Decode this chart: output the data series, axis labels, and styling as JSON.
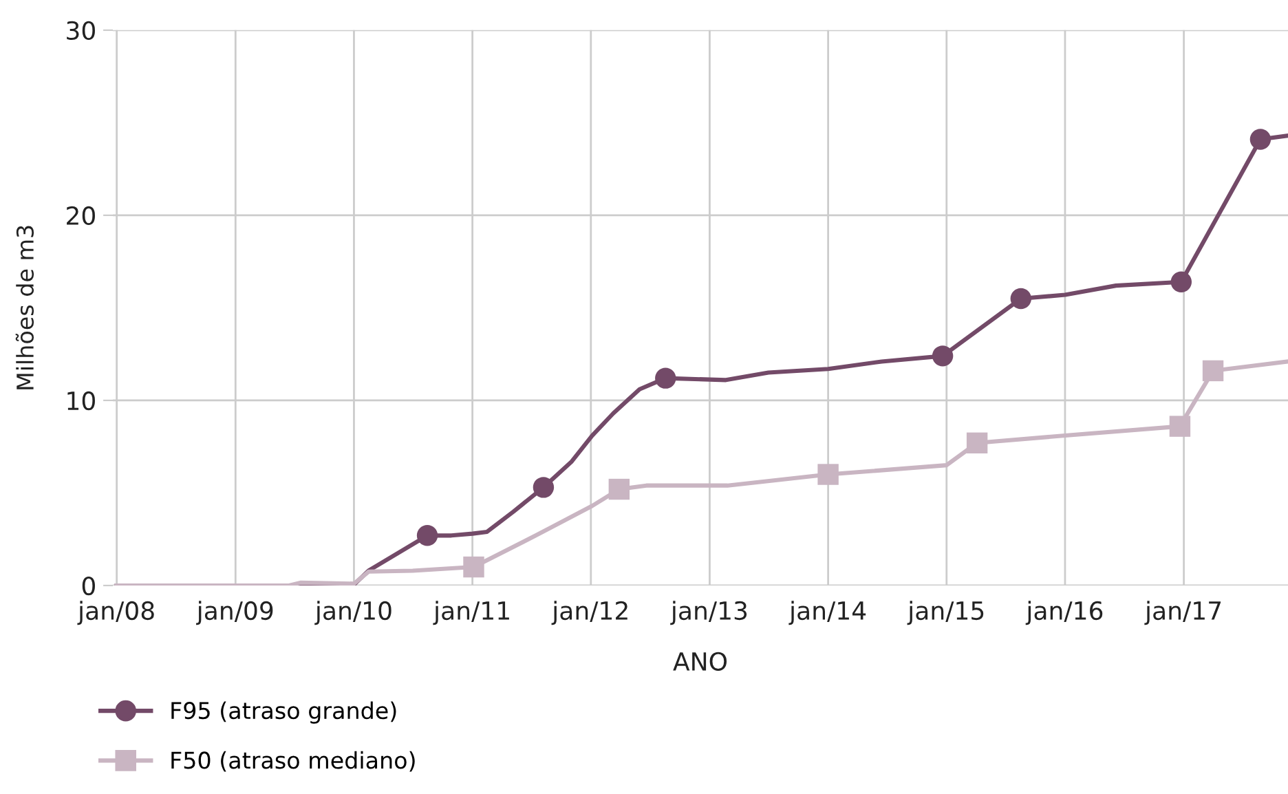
{
  "chart_data": {
    "type": "line",
    "xlabel": "ANO",
    "ylabel": "Milhões de m3",
    "xlim": [
      "2007-12-20",
      "2017-11-18"
    ],
    "ylim": [
      0,
      30
    ],
    "yticks": [
      0,
      10,
      20,
      30
    ],
    "xticks": [
      {
        "value": "2008-01-01",
        "label": "jan/08"
      },
      {
        "value": "2009-01-01",
        "label": "jan/09"
      },
      {
        "value": "2010-01-01",
        "label": "jan/10"
      },
      {
        "value": "2011-01-01",
        "label": "jan/11"
      },
      {
        "value": "2012-01-01",
        "label": "jan/12"
      },
      {
        "value": "2013-01-01",
        "label": "jan/13"
      },
      {
        "value": "2014-01-01",
        "label": "jan/14"
      },
      {
        "value": "2015-01-01",
        "label": "jan/15"
      },
      {
        "value": "2016-01-01",
        "label": "jan/16"
      },
      {
        "value": "2017-01-01",
        "label": "jan/17"
      }
    ],
    "grid": true,
    "legend": "bottom left",
    "series": [
      {
        "name": "F95 (atraso grande)",
        "color": "#734a68",
        "x": [
          "2008-01-01",
          "2009-06-15",
          "2010-01-01",
          "2010-02-15",
          "2010-08-15",
          "2010-10-28",
          "2011-01-01",
          "2011-02-15",
          "2011-05-08",
          "2011-08-08",
          "2011-11-03",
          "2012-01-05",
          "2012-03-10",
          "2012-05-30",
          "2012-08-18",
          "2013-02-20",
          "2013-07-01",
          "2014-01-01",
          "2014-06-15",
          "2014-12-20",
          "2015-08-18",
          "2016-01-01",
          "2016-06-06",
          "2016-12-24",
          "2017-08-25",
          "2017-11-18"
        ],
        "values": [
          0,
          0,
          0.05,
          0.8,
          2.7,
          2.7,
          2.8,
          2.9,
          4.0,
          5.3,
          6.7,
          8.1,
          9.3,
          10.6,
          11.2,
          11.1,
          11.5,
          11.7,
          12.1,
          12.4,
          15.5,
          15.7,
          16.2,
          16.4,
          24.1,
          24.3
        ]
      },
      {
        "type": "scatter",
        "marker": "circle",
        "color": "#734a68",
        "x": [
          "2010-08-15",
          "2011-08-08",
          "2012-08-18",
          "2014-12-20",
          "2015-08-18",
          "2016-12-24",
          "2017-08-25"
        ],
        "values": [
          2.7,
          5.3,
          11.2,
          12.4,
          15.5,
          16.4,
          24.1
        ]
      },
      {
        "name": "F50 (atraso mediano)",
        "color": "#c9b5c2",
        "x": [
          "2008-01-01",
          "2009-06-15",
          "2009-07-20",
          "2010-01-01",
          "2010-02-15",
          "2010-07-01",
          "2011-01-05",
          "2011-07-15",
          "2012-01-05",
          "2012-03-28",
          "2012-06-20",
          "2013-02-25",
          "2014-01-01",
          "2015-01-01",
          "2015-04-05",
          "2016-01-01",
          "2016-12-20",
          "2017-04-01",
          "2017-11-18"
        ],
        "values": [
          0,
          0,
          0.15,
          0.1,
          0.75,
          0.8,
          1.0,
          2.7,
          4.3,
          5.2,
          5.4,
          5.4,
          6.0,
          6.5,
          7.7,
          8.1,
          8.6,
          11.6,
          12.1
        ]
      },
      {
        "type": "scatter",
        "marker": "square",
        "color": "#c9b5c2",
        "x": [
          "2011-01-05",
          "2012-03-28",
          "2014-01-01",
          "2015-04-05",
          "2016-12-20",
          "2017-04-01"
        ],
        "values": [
          1.0,
          5.2,
          6.0,
          7.7,
          8.6,
          11.6
        ]
      }
    ]
  }
}
